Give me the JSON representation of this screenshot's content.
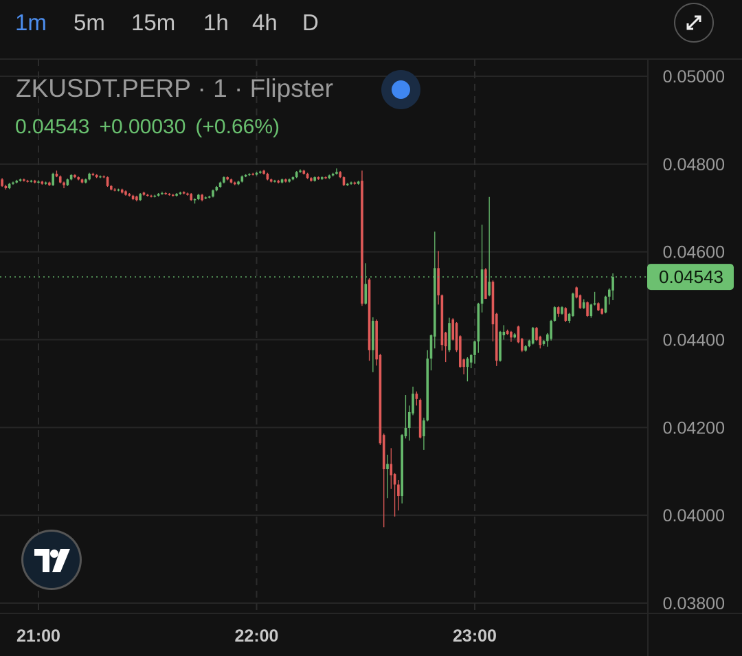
{
  "timeframes": [
    {
      "label": "1m",
      "active": true
    },
    {
      "label": "5m",
      "active": false
    },
    {
      "label": "15m",
      "active": false
    },
    {
      "label": "1h",
      "active": false
    },
    {
      "label": "4h",
      "active": false
    },
    {
      "label": "D",
      "active": false
    }
  ],
  "toolbar": {
    "expand_icon": "expand-arrows-icon"
  },
  "legend": {
    "title": "ZKUSDT.PERP · 1 · Flipster",
    "status_dot_color": "#3f86f0",
    "last": "0.04543",
    "change": "+0.00030",
    "change_pct": "(+0.66%)"
  },
  "logo": {
    "text": "TV"
  },
  "colors": {
    "up": "#66b96c",
    "down": "#e05a58",
    "grid": "#262626",
    "price_tag": "#6cc070",
    "accent": "#4d8ff0"
  },
  "chart_data": {
    "type": "candlestick",
    "interval": "1m",
    "y_ticks": [
      "0.05000",
      "0.04800",
      "0.04600",
      "0.04400",
      "0.04200",
      "0.04000",
      "0.03800"
    ],
    "x_ticks": [
      "21:00",
      "22:00",
      "23:00"
    ],
    "grid": true,
    "last_price": "0.04543",
    "candles_fields": [
      "time",
      "open",
      "high",
      "low",
      "close"
    ],
    "candles": [
      [
        "20:50",
        0.04765,
        0.04768,
        0.04748,
        0.0475
      ],
      [
        "20:51",
        0.0475,
        0.04753,
        0.04742,
        0.04745
      ],
      [
        "20:52",
        0.04745,
        0.04757,
        0.04743,
        0.04755
      ],
      [
        "20:53",
        0.04755,
        0.0476,
        0.04753,
        0.04758
      ],
      [
        "20:54",
        0.04758,
        0.04764,
        0.04756,
        0.04762
      ],
      [
        "20:55",
        0.04762,
        0.04767,
        0.0476,
        0.04765
      ],
      [
        "20:56",
        0.04765,
        0.04767,
        0.0476,
        0.04762
      ],
      [
        "20:57",
        0.04762,
        0.04764,
        0.04758,
        0.0476
      ],
      [
        "20:58",
        0.0476,
        0.04764,
        0.04758,
        0.04762
      ],
      [
        "20:59",
        0.04762,
        0.04764,
        0.04756,
        0.04758
      ],
      [
        "21:00",
        0.04758,
        0.04763,
        0.04756,
        0.0476
      ],
      [
        "21:01",
        0.0476,
        0.04762,
        0.04753,
        0.04755
      ],
      [
        "21:02",
        0.04755,
        0.0476,
        0.04753,
        0.04758
      ],
      [
        "21:03",
        0.04758,
        0.0476,
        0.0475,
        0.04752
      ],
      [
        "21:04",
        0.04752,
        0.0478,
        0.0475,
        0.04778
      ],
      [
        "21:05",
        0.04778,
        0.04785,
        0.0477,
        0.04772
      ],
      [
        "21:06",
        0.04772,
        0.04774,
        0.04756,
        0.04758
      ],
      [
        "21:07",
        0.04758,
        0.0476,
        0.04745,
        0.04752
      ],
      [
        "21:08",
        0.04752,
        0.04767,
        0.0475,
        0.04765
      ],
      [
        "21:09",
        0.04765,
        0.04777,
        0.04763,
        0.04775
      ],
      [
        "21:10",
        0.04775,
        0.04777,
        0.04768,
        0.0477
      ],
      [
        "21:11",
        0.0477,
        0.04772,
        0.04763,
        0.04765
      ],
      [
        "21:12",
        0.04765,
        0.04767,
        0.04756,
        0.04758
      ],
      [
        "21:13",
        0.04758,
        0.04767,
        0.04756,
        0.04765
      ],
      [
        "21:14",
        0.04765,
        0.0478,
        0.04763,
        0.04778
      ],
      [
        "21:15",
        0.04778,
        0.0478,
        0.04773,
        0.04775
      ],
      [
        "21:16",
        0.04775,
        0.04777,
        0.04768,
        0.0477
      ],
      [
        "21:17",
        0.0477,
        0.04774,
        0.04768,
        0.04772
      ],
      [
        "21:18",
        0.04772,
        0.04774,
        0.04768,
        0.0477
      ],
      [
        "21:19",
        0.0477,
        0.04772,
        0.04748,
        0.0475
      ],
      [
        "21:20",
        0.0475,
        0.04752,
        0.0474,
        0.04742
      ],
      [
        "21:21",
        0.04742,
        0.04745,
        0.04738,
        0.0474
      ],
      [
        "21:22",
        0.0474,
        0.04744,
        0.04738,
        0.04742
      ],
      [
        "21:23",
        0.04742,
        0.04744,
        0.04733,
        0.04735
      ],
      [
        "21:24",
        0.04738,
        0.0474,
        0.04728,
        0.0473
      ],
      [
        "21:25",
        0.04732,
        0.04734,
        0.04726,
        0.04728
      ],
      [
        "21:26",
        0.04728,
        0.0473,
        0.04718,
        0.0472
      ],
      [
        "21:27",
        0.04726,
        0.04728,
        0.04715,
        0.04718
      ],
      [
        "21:28",
        0.04718,
        0.04734,
        0.04716,
        0.04732
      ],
      [
        "21:29",
        0.04735,
        0.04737,
        0.04728,
        0.0473
      ],
      [
        "21:30",
        0.0473,
        0.04732,
        0.04726,
        0.04728
      ],
      [
        "21:31",
        0.04728,
        0.0473,
        0.04724,
        0.04726
      ],
      [
        "21:32",
        0.04726,
        0.0473,
        0.04724,
        0.04728
      ],
      [
        "21:33",
        0.04728,
        0.04734,
        0.04726,
        0.04732
      ],
      [
        "21:34",
        0.04732,
        0.04737,
        0.0473,
        0.04734
      ],
      [
        "21:35",
        0.04734,
        0.04736,
        0.0473,
        0.04732
      ],
      [
        "21:36",
        0.04732,
        0.04734,
        0.04728,
        0.0473
      ],
      [
        "21:37",
        0.0473,
        0.04732,
        0.04726,
        0.04728
      ],
      [
        "21:38",
        0.04728,
        0.04734,
        0.04726,
        0.04732
      ],
      [
        "21:39",
        0.04732,
        0.04737,
        0.0473,
        0.04735
      ],
      [
        "21:40",
        0.04736,
        0.04738,
        0.04731,
        0.04733
      ],
      [
        "21:41",
        0.04733,
        0.04735,
        0.04728,
        0.0473
      ],
      [
        "21:42",
        0.04732,
        0.04734,
        0.04716,
        0.04718
      ],
      [
        "21:43",
        0.04718,
        0.04722,
        0.0471,
        0.0472
      ],
      [
        "21:44",
        0.0472,
        0.04732,
        0.04718,
        0.0473
      ],
      [
        "21:45",
        0.0473,
        0.04732,
        0.04715,
        0.04718
      ],
      [
        "21:46",
        0.04722,
        0.04726,
        0.0472,
        0.04724
      ],
      [
        "21:47",
        0.04724,
        0.04728,
        0.04722,
        0.04726
      ],
      [
        "21:48",
        0.04726,
        0.04742,
        0.04724,
        0.0474
      ],
      [
        "21:49",
        0.0474,
        0.0475,
        0.04738,
        0.04748
      ],
      [
        "21:50",
        0.04748,
        0.0476,
        0.04746,
        0.04758
      ],
      [
        "21:51",
        0.04758,
        0.04772,
        0.04756,
        0.0477
      ],
      [
        "21:52",
        0.0477,
        0.04772,
        0.04763,
        0.04765
      ],
      [
        "21:53",
        0.04765,
        0.04767,
        0.04756,
        0.04758
      ],
      [
        "21:54",
        0.04758,
        0.0476,
        0.04752,
        0.04754
      ],
      [
        "21:55",
        0.04754,
        0.04762,
        0.04752,
        0.0476
      ],
      [
        "21:56",
        0.0476,
        0.04774,
        0.04758,
        0.04772
      ],
      [
        "21:57",
        0.04772,
        0.04777,
        0.0477,
        0.04775
      ],
      [
        "21:58",
        0.04775,
        0.04779,
        0.04773,
        0.04777
      ],
      [
        "21:59",
        0.04778,
        0.0478,
        0.04774,
        0.04776
      ],
      [
        "22:00",
        0.04776,
        0.04782,
        0.04774,
        0.0478
      ],
      [
        "22:01",
        0.0478,
        0.04785,
        0.04778,
        0.04783
      ],
      [
        "22:02",
        0.04785,
        0.04787,
        0.04776,
        0.04778
      ],
      [
        "22:03",
        0.04778,
        0.0478,
        0.04763,
        0.04765
      ],
      [
        "22:04",
        0.04765,
        0.04767,
        0.04758,
        0.0476
      ],
      [
        "22:05",
        0.0476,
        0.04764,
        0.04758,
        0.04762
      ],
      [
        "22:06",
        0.04762,
        0.04764,
        0.04756,
        0.04758
      ],
      [
        "22:07",
        0.04758,
        0.04767,
        0.04756,
        0.04765
      ],
      [
        "22:08",
        0.04765,
        0.04767,
        0.04758,
        0.0476
      ],
      [
        "22:09",
        0.0476,
        0.04767,
        0.04758,
        0.04765
      ],
      [
        "22:10",
        0.04765,
        0.04772,
        0.04763,
        0.0477
      ],
      [
        "22:11",
        0.0477,
        0.04784,
        0.04768,
        0.04782
      ],
      [
        "22:12",
        0.04782,
        0.04788,
        0.0478,
        0.04785
      ],
      [
        "22:13",
        0.04785,
        0.04787,
        0.04776,
        0.04778
      ],
      [
        "22:14",
        0.04778,
        0.0478,
        0.04766,
        0.04768
      ],
      [
        "22:15",
        0.04768,
        0.0477,
        0.0476,
        0.04762
      ],
      [
        "22:16",
        0.04762,
        0.04772,
        0.0476,
        0.0477
      ],
      [
        "22:17",
        0.0477,
        0.04772,
        0.04764,
        0.04766
      ],
      [
        "22:18",
        0.04766,
        0.04772,
        0.04764,
        0.0477
      ],
      [
        "22:19",
        0.0477,
        0.04772,
        0.04766,
        0.04768
      ],
      [
        "22:20",
        0.04768,
        0.04776,
        0.04766,
        0.04774
      ],
      [
        "22:21",
        0.04774,
        0.0478,
        0.04772,
        0.04778
      ],
      [
        "22:22",
        0.04778,
        0.0479,
        0.04776,
        0.04782
      ],
      [
        "22:23",
        0.04782,
        0.04784,
        0.04768,
        0.0477
      ],
      [
        "22:24",
        0.0477,
        0.04772,
        0.0475,
        0.04752
      ],
      [
        "22:25",
        0.04752,
        0.04757,
        0.0475,
        0.04755
      ],
      [
        "22:26",
        0.04755,
        0.0476,
        0.04753,
        0.04758
      ],
      [
        "22:27",
        0.04758,
        0.0476,
        0.04753,
        0.04755
      ],
      [
        "22:28",
        0.04755,
        0.04762,
        0.04753,
        0.0476
      ],
      [
        "22:29",
        0.04762,
        0.04785,
        0.04477,
        0.04482
      ],
      [
        "22:30",
        0.04482,
        0.04574,
        0.0448,
        0.04527
      ],
      [
        "22:31",
        0.04537,
        0.0454,
        0.04352,
        0.04376
      ],
      [
        "22:32",
        0.04376,
        0.04451,
        0.04326,
        0.04443
      ],
      [
        "22:33",
        0.04443,
        0.04446,
        0.04341,
        0.04355
      ],
      [
        "22:34",
        0.04365,
        0.04368,
        0.0416,
        0.04164
      ],
      [
        "22:35",
        0.04183,
        0.04186,
        0.03973,
        0.04105
      ],
      [
        "22:36",
        0.04105,
        0.04138,
        0.04039,
        0.04117
      ],
      [
        "22:37",
        0.04117,
        0.04153,
        0.0406,
        0.04091
      ],
      [
        "22:38",
        0.04094,
        0.04096,
        0.03997,
        0.0407
      ],
      [
        "22:39",
        0.0407,
        0.0408,
        0.04011,
        0.04044
      ],
      [
        "22:40",
        0.04044,
        0.04185,
        0.04027,
        0.04183
      ],
      [
        "22:41",
        0.0418,
        0.04274,
        0.04175,
        0.04199
      ],
      [
        "22:42",
        0.04199,
        0.0425,
        0.0417,
        0.04235
      ],
      [
        "22:43",
        0.04232,
        0.04293,
        0.04228,
        0.04277
      ],
      [
        "22:44",
        0.04277,
        0.04282,
        0.0425,
        0.04265
      ],
      [
        "22:45",
        0.04263,
        0.04266,
        0.04175,
        0.04177
      ],
      [
        "22:46",
        0.0418,
        0.04222,
        0.04149,
        0.04216
      ],
      [
        "22:47",
        0.04216,
        0.04376,
        0.04214,
        0.04357
      ],
      [
        "22:48",
        0.04357,
        0.04412,
        0.0433,
        0.0441
      ],
      [
        "22:49",
        0.04407,
        0.04646,
        0.0438,
        0.04563
      ],
      [
        "22:50",
        0.04563,
        0.04602,
        0.0448,
        0.04501
      ],
      [
        "22:51",
        0.04501,
        0.04503,
        0.04375,
        0.04388
      ],
      [
        "22:52",
        0.04416,
        0.04418,
        0.04349,
        0.04385
      ],
      [
        "22:53",
        0.04376,
        0.0445,
        0.04372,
        0.04438
      ],
      [
        "22:54",
        0.04446,
        0.04449,
        0.04398,
        0.044
      ],
      [
        "22:55",
        0.04438,
        0.0444,
        0.04372,
        0.04376
      ],
      [
        "22:56",
        0.04408,
        0.0441,
        0.04336,
        0.04338
      ],
      [
        "22:57",
        0.04355,
        0.04357,
        0.04321,
        0.04338
      ],
      [
        "22:58",
        0.04338,
        0.0436,
        0.04305,
        0.04357
      ],
      [
        "22:59",
        0.04348,
        0.04367,
        0.04335,
        0.04365
      ],
      [
        "23:00",
        0.04365,
        0.04398,
        0.04345,
        0.04396
      ],
      [
        "23:01",
        0.04396,
        0.04484,
        0.0437,
        0.04482
      ],
      [
        "23:02",
        0.04482,
        0.04662,
        0.04462,
        0.0456
      ],
      [
        "23:03",
        0.0456,
        0.04563,
        0.04493,
        0.04493
      ],
      [
        "23:04",
        0.04501,
        0.04725,
        0.04499,
        0.04532
      ],
      [
        "23:05",
        0.04532,
        0.04535,
        0.04396,
        0.04435
      ],
      [
        "23:06",
        0.04459,
        0.04461,
        0.0434,
        0.04352
      ],
      [
        "23:07",
        0.04352,
        0.0442,
        0.0435,
        0.04418
      ],
      [
        "23:08",
        0.0441,
        0.04433,
        0.044,
        0.04418
      ],
      [
        "23:09",
        0.0442,
        0.04423,
        0.04411,
        0.04413
      ],
      [
        "23:10",
        0.04418,
        0.0442,
        0.04395,
        0.04405
      ],
      [
        "23:11",
        0.04405,
        0.04415,
        0.04403,
        0.04412
      ],
      [
        "23:12",
        0.0443,
        0.04432,
        0.04392,
        0.04394
      ],
      [
        "23:13",
        0.04402,
        0.04404,
        0.04372,
        0.04375
      ],
      [
        "23:14",
        0.04375,
        0.04388,
        0.04373,
        0.04385
      ],
      [
        "23:15",
        0.04385,
        0.044,
        0.04383,
        0.04398
      ],
      [
        "23:16",
        0.04391,
        0.04429,
        0.04389,
        0.04427
      ],
      [
        "23:17",
        0.04427,
        0.04429,
        0.04397,
        0.04399
      ],
      [
        "23:18",
        0.04407,
        0.04409,
        0.0438,
        0.04388
      ],
      [
        "23:19",
        0.0439,
        0.04399,
        0.04386,
        0.04397
      ],
      [
        "23:20",
        0.04397,
        0.04415,
        0.04384,
        0.04412
      ],
      [
        "23:21",
        0.04402,
        0.04445,
        0.04398,
        0.04443
      ],
      [
        "23:22",
        0.04443,
        0.04476,
        0.04441,
        0.04474
      ],
      [
        "23:23",
        0.04474,
        0.04476,
        0.04452,
        0.04459
      ],
      [
        "23:24",
        0.04459,
        0.04476,
        0.04457,
        0.04474
      ],
      [
        "23:25",
        0.04472,
        0.04474,
        0.0444,
        0.04443
      ],
      [
        "23:26",
        0.04443,
        0.04461,
        0.04438,
        0.04459
      ],
      [
        "23:27",
        0.04454,
        0.04507,
        0.04452,
        0.04505
      ],
      [
        "23:28",
        0.04519,
        0.04521,
        0.04494,
        0.04496
      ],
      [
        "23:29",
        0.04501,
        0.04503,
        0.0447,
        0.04472
      ],
      [
        "23:30",
        0.04472,
        0.04492,
        0.0447,
        0.04485
      ],
      [
        "23:31",
        0.04485,
        0.04487,
        0.04452,
        0.04454
      ],
      [
        "23:32",
        0.04454,
        0.04482,
        0.0445,
        0.0448
      ],
      [
        "23:33",
        0.0448,
        0.04509,
        0.04478,
        0.04483
      ],
      [
        "23:34",
        0.04483,
        0.04485,
        0.04465,
        0.04467
      ],
      [
        "23:35",
        0.0447,
        0.04472,
        0.04457,
        0.04459
      ],
      [
        "23:36",
        0.04462,
        0.045,
        0.0446,
        0.04498
      ],
      [
        "23:37",
        0.04498,
        0.04517,
        0.0448,
        0.04514
      ],
      [
        "23:38",
        0.04512,
        0.04551,
        0.0449,
        0.04543
      ]
    ]
  }
}
